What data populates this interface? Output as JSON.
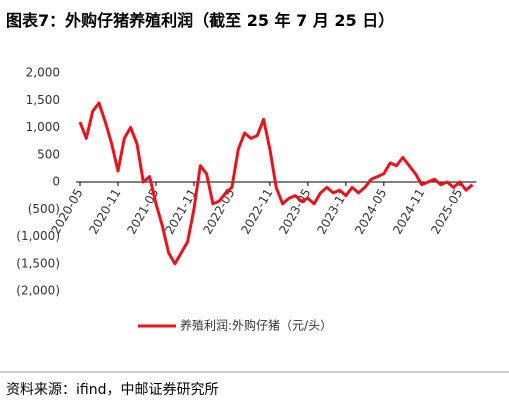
{
  "chart_data": {
    "type": "line",
    "title": "图表7：外购仔猪养殖利润（截至 25 年 7 月 25 日）",
    "source": "资料来源：ifind，中邮证券研究所",
    "x": [
      "2020-05",
      "2020-06",
      "2020-07",
      "2020-08",
      "2020-09",
      "2020-10",
      "2020-11",
      "2020-12",
      "2021-01",
      "2021-02",
      "2021-03",
      "2021-04",
      "2021-05",
      "2021-06",
      "2021-07",
      "2021-08",
      "2021-09",
      "2021-10",
      "2021-11",
      "2021-12",
      "2022-01",
      "2022-02",
      "2022-03",
      "2022-04",
      "2022-05",
      "2022-06",
      "2022-07",
      "2022-08",
      "2022-09",
      "2022-10",
      "2022-11",
      "2022-12",
      "2023-01",
      "2023-02",
      "2023-03",
      "2023-04",
      "2023-05",
      "2023-06",
      "2023-07",
      "2023-08",
      "2023-09",
      "2023-10",
      "2023-11",
      "2023-12",
      "2024-01",
      "2024-02",
      "2024-03",
      "2024-04",
      "2024-05",
      "2024-06",
      "2024-07",
      "2024-08",
      "2024-09",
      "2024-10",
      "2024-11",
      "2024-12",
      "2025-01",
      "2025-02",
      "2025-03",
      "2025-04",
      "2025-05",
      "2025-06",
      "2025-07"
    ],
    "series": [
      {
        "name": "养殖利润:外购仔猪（元/头）",
        "color": "#e8131b",
        "values": [
          1100,
          800,
          1300,
          1450,
          1100,
          700,
          200,
          800,
          1000,
          700,
          0,
          100,
          -400,
          -800,
          -1300,
          -1500,
          -1300,
          -1100,
          -500,
          300,
          150,
          -400,
          -350,
          -200,
          -100,
          600,
          900,
          800,
          850,
          1150,
          600,
          -100,
          -400,
          -300,
          -250,
          -350,
          -300,
          -400,
          -200,
          -100,
          -200,
          -150,
          -250,
          -100,
          -200,
          -100,
          50,
          100,
          150,
          350,
          300,
          450,
          300,
          150,
          -50,
          0,
          50,
          -50,
          0,
          -100,
          0,
          -150,
          -50
        ]
      }
    ],
    "xticks": [
      "2020-05",
      "2020-11",
      "2021-05",
      "2021-11",
      "2022-05",
      "2022-11",
      "2023-05",
      "2023-11",
      "2024-05",
      "2024-11",
      "2025-05"
    ],
    "ylim": [
      -2000,
      2000
    ],
    "yticks": [
      {
        "value": 2000,
        "label": "2,000"
      },
      {
        "value": 1500,
        "label": "1,500"
      },
      {
        "value": 1000,
        "label": "1,000"
      },
      500,
      0,
      {
        "value": -500,
        "label": "(500)"
      },
      {
        "value": -1000,
        "label": "(1,000)"
      },
      {
        "value": -1500,
        "label": "(1,500)"
      },
      {
        "value": -2000,
        "label": "(2,000)"
      }
    ],
    "negative_tick_color": "#e8131b"
  }
}
